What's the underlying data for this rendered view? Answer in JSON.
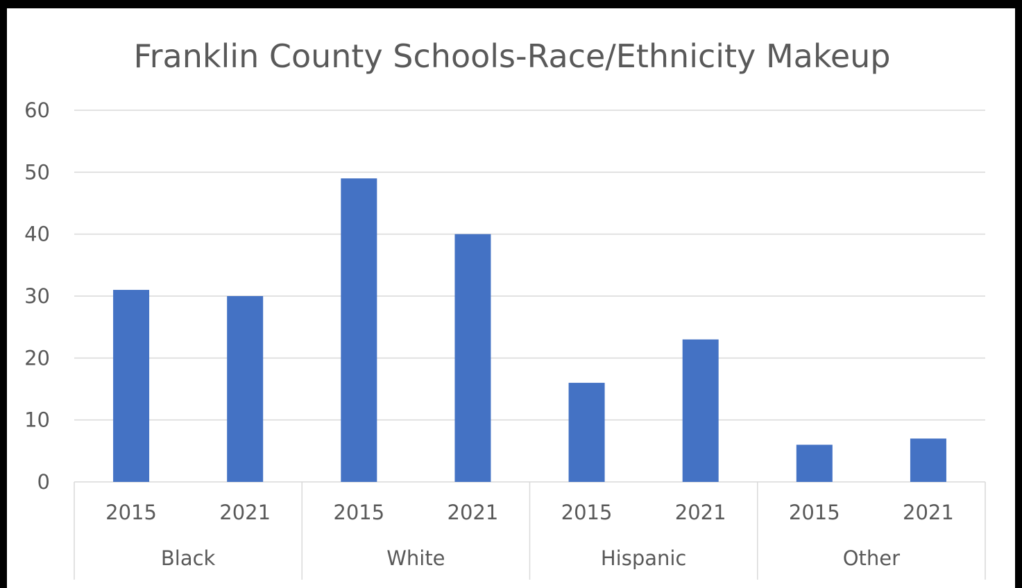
{
  "chart_data": {
    "type": "bar",
    "title": "Franklin County Schools-Race/Ethnicity Makeup",
    "groups": [
      "Black",
      "White",
      "Hispanic",
      "Other"
    ],
    "categories": [
      "2015",
      "2021",
      "2015",
      "2021",
      "2015",
      "2021",
      "2015",
      "2021"
    ],
    "values": [
      31,
      30,
      49,
      40,
      16,
      23,
      6,
      7
    ],
    "ylim": [
      0,
      60
    ],
    "yticks": [
      0,
      10,
      20,
      30,
      40,
      50,
      60
    ],
    "grid": true,
    "xlabel": "",
    "ylabel": "",
    "colors": {
      "bar": "#4472C4",
      "grid": "#D9D9D9",
      "text": "#595959",
      "border": "#000000"
    }
  }
}
